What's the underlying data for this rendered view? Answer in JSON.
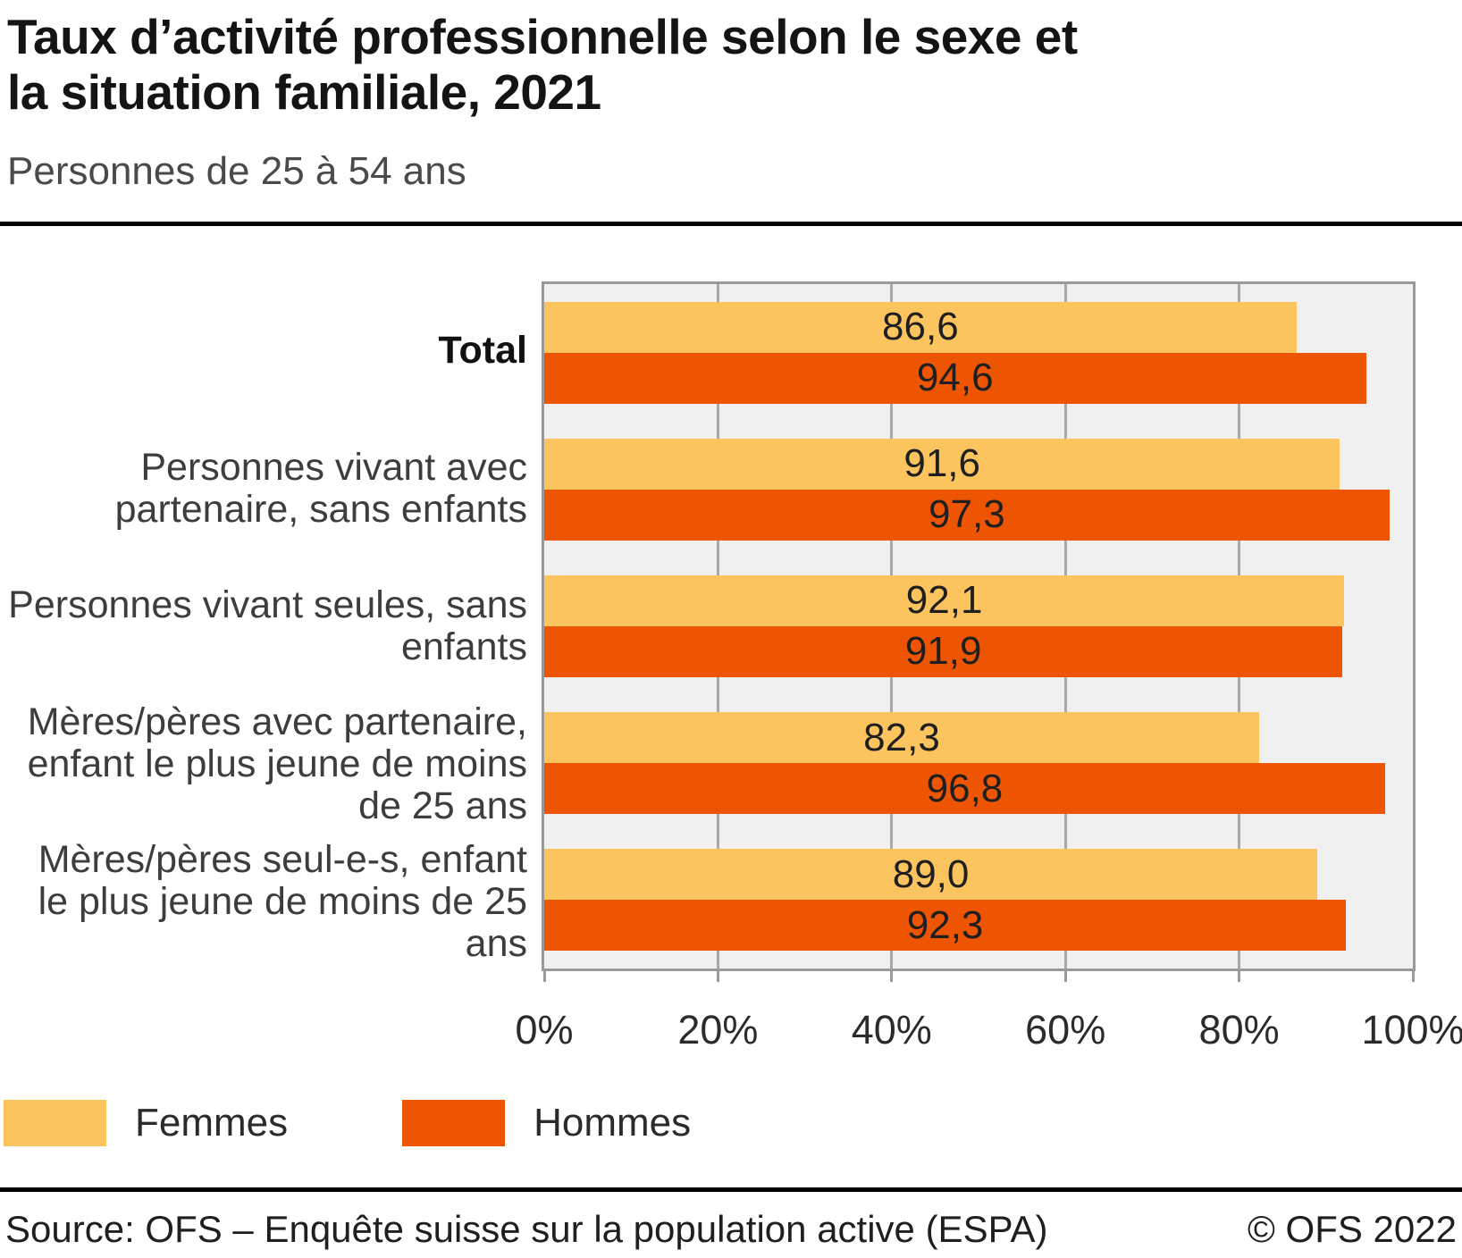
{
  "header": {
    "title_lines": [
      "Taux d’activité professionnelle selon le sexe et",
      "la situation familiale, 2021"
    ],
    "subtitle": "Personnes de 25 à 54 ans"
  },
  "chart_data": {
    "type": "bar",
    "orientation": "horizontal",
    "title": "Taux d’activité professionnelle selon le sexe et la situation familiale, 2021",
    "subtitle": "Personnes de 25 à 54 ans",
    "unit": "%",
    "xlim": [
      0,
      100
    ],
    "grid": true,
    "categories": [
      "Total",
      "Personnes vivant avec partenaire, sans enfants",
      "Personnes vivant seules, sans enfants",
      "Mères/pères avec partenaire, enfant le plus jeune de moins de 25 ans",
      "Mères/pères seul-e-s, enfant le plus jeune de moins de 25 ans"
    ],
    "series": [
      {
        "name": "Femmes",
        "color": "#FCC45E",
        "values": [
          86.6,
          91.6,
          92.1,
          82.3,
          89.0
        ],
        "value_labels": [
          "86,6",
          "91,6",
          "92,1",
          "82,3",
          "89,0"
        ]
      },
      {
        "name": "Hommes",
        "color": "#EE5502",
        "values": [
          94.6,
          97.3,
          91.9,
          96.8,
          92.3
        ],
        "value_labels": [
          "94,6",
          "97,3",
          "91,9",
          "96,8",
          "92,3"
        ]
      }
    ],
    "x_ticks": [
      {
        "label": "0%",
        "pct": 0
      },
      {
        "label": "20%",
        "pct": 20
      },
      {
        "label": "40%",
        "pct": 40
      },
      {
        "label": "60%",
        "pct": 60
      },
      {
        "label": "80%",
        "pct": 80
      },
      {
        "label": "100%",
        "pct": 100
      }
    ],
    "legend_position": "bottom-left"
  },
  "legend": {
    "items": [
      {
        "label": "Femmes",
        "color": "#FCC45E"
      },
      {
        "label": "Hommes",
        "color": "#EE5502"
      }
    ]
  },
  "footer": {
    "source": "Source: OFS – Enquête suisse sur la population active (ESPA)",
    "copyright": "© OFS 2022"
  },
  "colors": {
    "femmes": "#FCC45E",
    "hommes": "#EE5502",
    "plot_bg": "#F0F0F0",
    "plot_border": "#9A9A9A",
    "gridline": "#A8A8A8",
    "rule": "#000000"
  }
}
